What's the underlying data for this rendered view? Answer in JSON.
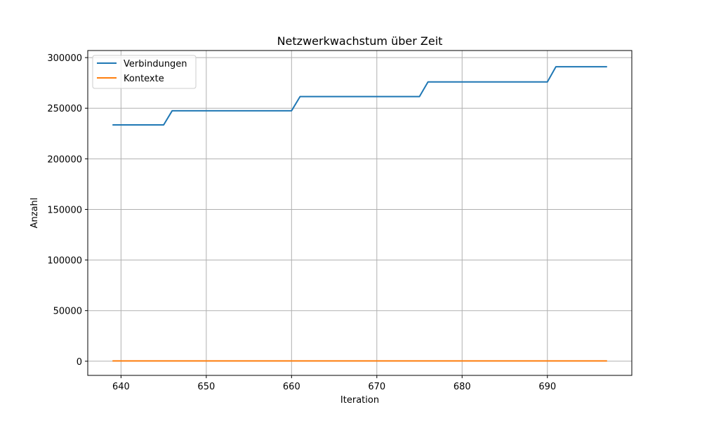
{
  "chart_data": {
    "type": "line",
    "title": "Netzwerkwachstum über Zeit",
    "xlabel": "Iteration",
    "ylabel": "Anzahl",
    "xlim": [
      636.1,
      699.9
    ],
    "ylim": [
      -14000,
      307000
    ],
    "xticks": [
      640,
      650,
      660,
      670,
      680,
      690
    ],
    "yticks": [
      0,
      50000,
      100000,
      150000,
      200000,
      250000,
      300000
    ],
    "grid": true,
    "legend_position": "top-left",
    "x": [
      639,
      640,
      641,
      642,
      643,
      644,
      645,
      646,
      647,
      648,
      649,
      650,
      651,
      652,
      653,
      654,
      655,
      656,
      657,
      658,
      659,
      660,
      661,
      662,
      663,
      664,
      665,
      666,
      667,
      668,
      669,
      670,
      671,
      672,
      673,
      674,
      675,
      676,
      677,
      678,
      679,
      680,
      681,
      682,
      683,
      684,
      685,
      686,
      687,
      688,
      689,
      690,
      691,
      692,
      693,
      694,
      695,
      696,
      697
    ],
    "series": [
      {
        "name": "Verbindungen",
        "color": "#1f77b4",
        "values": [
          233500,
          233500,
          233500,
          233500,
          233500,
          233500,
          233500,
          247500,
          247500,
          247500,
          247500,
          247500,
          247500,
          247500,
          247500,
          247500,
          247500,
          247500,
          247500,
          247500,
          247500,
          247500,
          261500,
          261500,
          261500,
          261500,
          261500,
          261500,
          261500,
          261500,
          261500,
          261500,
          261500,
          261500,
          261500,
          261500,
          261500,
          276000,
          276000,
          276000,
          276000,
          276000,
          276000,
          276000,
          276000,
          276000,
          276000,
          276000,
          276000,
          276000,
          276000,
          276000,
          291000,
          291000,
          291000,
          291000,
          291000,
          291000,
          291000
        ]
      },
      {
        "name": "Kontexte",
        "color": "#ff7f0e",
        "values": [
          300,
          300,
          300,
          300,
          300,
          300,
          300,
          300,
          300,
          300,
          300,
          300,
          300,
          300,
          300,
          300,
          300,
          300,
          300,
          300,
          300,
          300,
          300,
          300,
          300,
          300,
          300,
          300,
          300,
          300,
          300,
          300,
          300,
          300,
          300,
          300,
          300,
          300,
          300,
          300,
          300,
          300,
          300,
          300,
          300,
          300,
          300,
          300,
          300,
          300,
          300,
          300,
          300,
          300,
          300,
          300,
          300,
          300,
          300
        ]
      }
    ]
  }
}
